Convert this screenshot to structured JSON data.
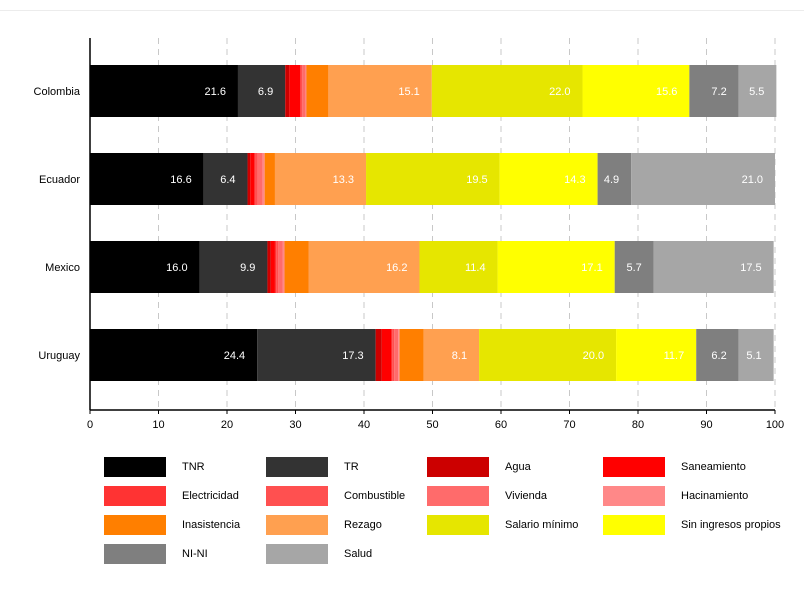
{
  "chart_data": {
    "type": "bar",
    "orientation": "horizontal",
    "stacked": true,
    "categories": [
      "Colombia",
      "Ecuador",
      "Mexico",
      "Uruguay"
    ],
    "xlim": [
      0,
      100
    ],
    "xticks": [
      0,
      10,
      20,
      30,
      40,
      50,
      60,
      70,
      80,
      90,
      100
    ],
    "grid": "vertical dashed",
    "legend_position": "bottom",
    "series": [
      {
        "name": "TNR",
        "color": "#000000",
        "label_color": "#ffffff",
        "values": [
          21.6,
          16.6,
          16.0,
          24.4
        ]
      },
      {
        "name": "TR",
        "color": "#333333",
        "label_color": "#ffffff",
        "values": [
          6.9,
          6.4,
          9.9,
          17.3
        ]
      },
      {
        "name": "Agua",
        "color": "#cc0000",
        "label_color": "#ffffff",
        "values": [
          0.6,
          0.4,
          0.5,
          0.9
        ]
      },
      {
        "name": "Saneamiento",
        "color": "#ff0000",
        "label_color": "#ffffff",
        "values": [
          1.6,
          0.6,
          0.6,
          1.4
        ]
      },
      {
        "name": "Electricidad",
        "color": "#ff3333",
        "label_color": "#ffffff",
        "values": [
          0.1,
          0.2,
          0.2,
          0.1
        ]
      },
      {
        "name": "Combustible",
        "color": "#ff5050",
        "label_color": "#ffffff",
        "values": [
          0.2,
          0.3,
          0.3,
          0.3
        ]
      },
      {
        "name": "Vivienda",
        "color": "#ff6b6b",
        "label_color": "#ffffff",
        "values": [
          0.5,
          0.7,
          0.6,
          0.6
        ]
      },
      {
        "name": "Hacinamiento",
        "color": "#ff8888",
        "label_color": "#ffffff",
        "values": [
          0.1,
          0.3,
          0.3,
          0.2
        ]
      },
      {
        "name": "Inasistencia",
        "color": "#ff7f00",
        "label_color": "#ffffff",
        "values": [
          3.2,
          1.5,
          3.5,
          3.5
        ]
      },
      {
        "name": "Rezago",
        "color": "#ffa050",
        "label_color": "#ffffff",
        "values": [
          15.1,
          13.3,
          16.2,
          8.1
        ]
      },
      {
        "name": "Salario mínimo",
        "color": "#e6e600",
        "label_color": "#ffffff",
        "values": [
          22.0,
          19.5,
          11.4,
          20.0
        ]
      },
      {
        "name": "Sin ingresos propios",
        "color": "#ffff00",
        "label_color": "#ffffff",
        "values": [
          15.6,
          14.3,
          17.1,
          11.7
        ]
      },
      {
        "name": "NI-NI",
        "color": "#7f7f7f",
        "label_color": "#ffffff",
        "values": [
          7.2,
          4.9,
          5.7,
          6.2
        ]
      },
      {
        "name": "Salud",
        "color": "#a6a6a6",
        "label_color": "#ffffff",
        "values": [
          5.5,
          21.0,
          17.5,
          5.1
        ]
      }
    ],
    "data_labels": [
      [
        "21.6",
        "6.9",
        "",
        "",
        "",
        "",
        "",
        "",
        "",
        "15.1",
        "22.0",
        "15.6",
        "7.2",
        "5.5"
      ],
      [
        "16.6",
        "6.4",
        "",
        "",
        "",
        "",
        "",
        "",
        "",
        "13.3",
        "19.5",
        "14.3",
        "4.9",
        "21.0"
      ],
      [
        "16.0",
        "9.9",
        "",
        "",
        "",
        "",
        "",
        "",
        "",
        "16.2",
        "11.4",
        "17.1",
        "5.7",
        "17.5"
      ],
      [
        "24.4",
        "17.3",
        "",
        "",
        "",
        "",
        "",
        "",
        "",
        "8.1",
        "20.0",
        "11.7",
        "6.2",
        "5.1"
      ]
    ]
  }
}
